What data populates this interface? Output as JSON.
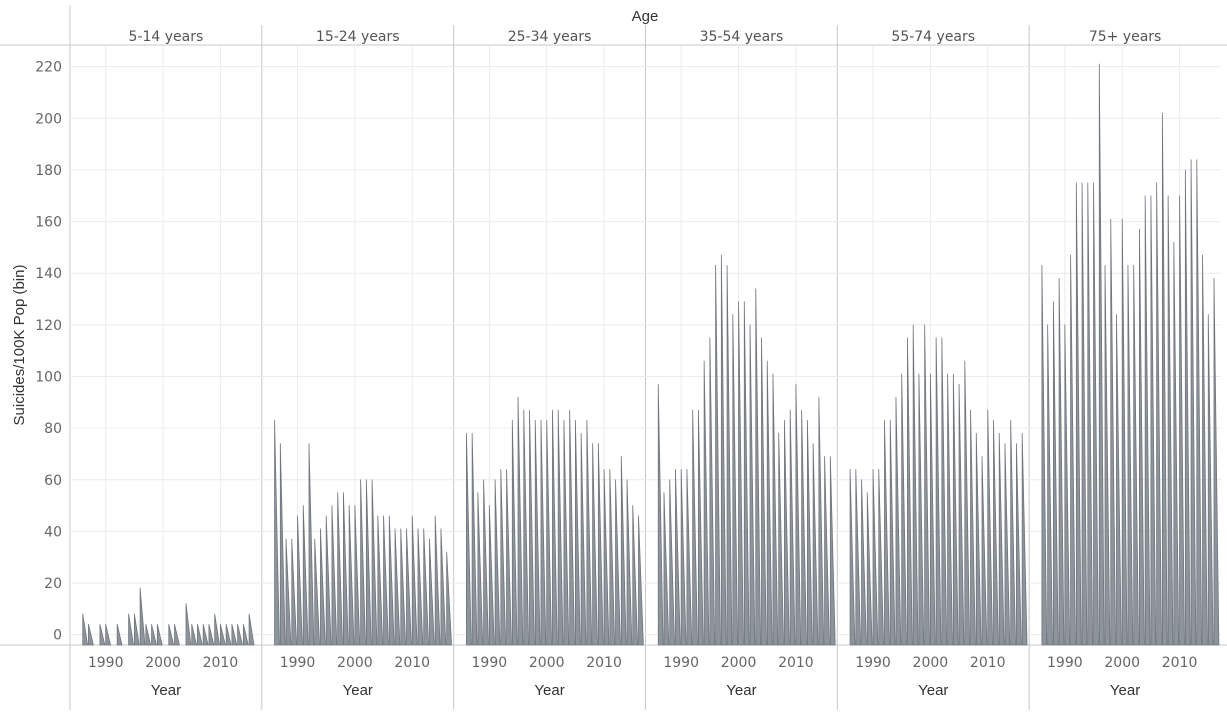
{
  "chart_data": {
    "type": "area",
    "facet_header": "Age",
    "ylabel": "Suicides/100K Pop (bin)",
    "xlabel": "Year",
    "ylim": [
      -4,
      228
    ],
    "yticks": [
      0,
      20,
      40,
      60,
      80,
      100,
      120,
      140,
      160,
      180,
      200,
      220
    ],
    "xlim": [
      1985,
      2016
    ],
    "xticks": [
      1990,
      2000,
      2010
    ],
    "grid": true,
    "mark_color": "#8e949b",
    "mark_edge_color": "#6f757c",
    "panels": [
      {
        "label": "5-14 years",
        "x": [
          1986,
          1987,
          1989,
          1990,
          1992,
          1994,
          1995,
          1996,
          1997,
          1998,
          1999,
          2001,
          2002,
          2004,
          2005,
          2006,
          2007,
          2008,
          2009,
          2010,
          2011,
          2012,
          2013,
          2014,
          2015
        ],
        "values": [
          8,
          4,
          4,
          4,
          4,
          8,
          8,
          18,
          4,
          4,
          4,
          4,
          4,
          12,
          4,
          4,
          4,
          4,
          8,
          4,
          4,
          4,
          4,
          4,
          8
        ]
      },
      {
        "label": "15-24 years",
        "x": [
          1986,
          1987,
          1988,
          1989,
          1990,
          1991,
          1992,
          1993,
          1994,
          1995,
          1996,
          1997,
          1998,
          1999,
          2000,
          2001,
          2002,
          2003,
          2004,
          2005,
          2006,
          2007,
          2008,
          2009,
          2010,
          2011,
          2012,
          2013,
          2014,
          2015,
          2016
        ],
        "values": [
          83,
          74,
          37,
          37,
          46,
          50,
          74,
          37,
          41,
          46,
          50,
          55,
          55,
          50,
          50,
          60,
          60,
          60,
          46,
          46,
          46,
          41,
          41,
          41,
          46,
          41,
          41,
          37,
          46,
          41,
          32
        ]
      },
      {
        "label": "25-34 years",
        "x": [
          1986,
          1987,
          1988,
          1989,
          1990,
          1991,
          1992,
          1993,
          1994,
          1995,
          1996,
          1997,
          1998,
          1999,
          2000,
          2001,
          2002,
          2003,
          2004,
          2005,
          2006,
          2007,
          2008,
          2009,
          2010,
          2011,
          2012,
          2013,
          2014,
          2015,
          2016
        ],
        "values": [
          78,
          78,
          55,
          60,
          50,
          60,
          64,
          64,
          83,
          92,
          87,
          87,
          83,
          83,
          83,
          87,
          87,
          83,
          87,
          83,
          78,
          83,
          74,
          74,
          64,
          64,
          60,
          69,
          60,
          50,
          46
        ]
      },
      {
        "label": "35-54 years",
        "x": [
          1986,
          1987,
          1988,
          1989,
          1990,
          1991,
          1992,
          1993,
          1994,
          1995,
          1996,
          1997,
          1998,
          1999,
          2000,
          2001,
          2002,
          2003,
          2004,
          2005,
          2006,
          2007,
          2008,
          2009,
          2010,
          2011,
          2012,
          2013,
          2014,
          2015,
          2016
        ],
        "values": [
          97,
          55,
          60,
          64,
          64,
          64,
          87,
          87,
          106,
          115,
          143,
          147,
          143,
          124,
          129,
          129,
          120,
          134,
          115,
          106,
          101,
          78,
          83,
          87,
          97,
          87,
          83,
          74,
          92,
          69,
          69
        ]
      },
      {
        "label": "55-74 years",
        "x": [
          1986,
          1987,
          1988,
          1989,
          1990,
          1991,
          1992,
          1993,
          1994,
          1995,
          1996,
          1997,
          1998,
          1999,
          2000,
          2001,
          2002,
          2003,
          2004,
          2005,
          2006,
          2007,
          2008,
          2009,
          2010,
          2011,
          2012,
          2013,
          2014,
          2015,
          2016
        ],
        "values": [
          64,
          64,
          60,
          55,
          64,
          64,
          83,
          83,
          92,
          101,
          115,
          120,
          101,
          120,
          101,
          115,
          115,
          101,
          101,
          97,
          106,
          87,
          78,
          69,
          87,
          83,
          78,
          74,
          83,
          74,
          78
        ]
      },
      {
        "label": "75+ years",
        "x": [
          1986,
          1987,
          1988,
          1989,
          1990,
          1991,
          1992,
          1993,
          1994,
          1995,
          1996,
          1997,
          1998,
          1999,
          2000,
          2001,
          2002,
          2003,
          2004,
          2005,
          2006,
          2007,
          2008,
          2009,
          2010,
          2011,
          2012,
          2013,
          2014,
          2015,
          2016
        ],
        "values": [
          143,
          120,
          129,
          138,
          120,
          147,
          175,
          175,
          175,
          175,
          221,
          143,
          161,
          124,
          161,
          143,
          143,
          157,
          170,
          170,
          175,
          202,
          170,
          152,
          170,
          180,
          184,
          184,
          147,
          124,
          138
        ]
      }
    ]
  }
}
